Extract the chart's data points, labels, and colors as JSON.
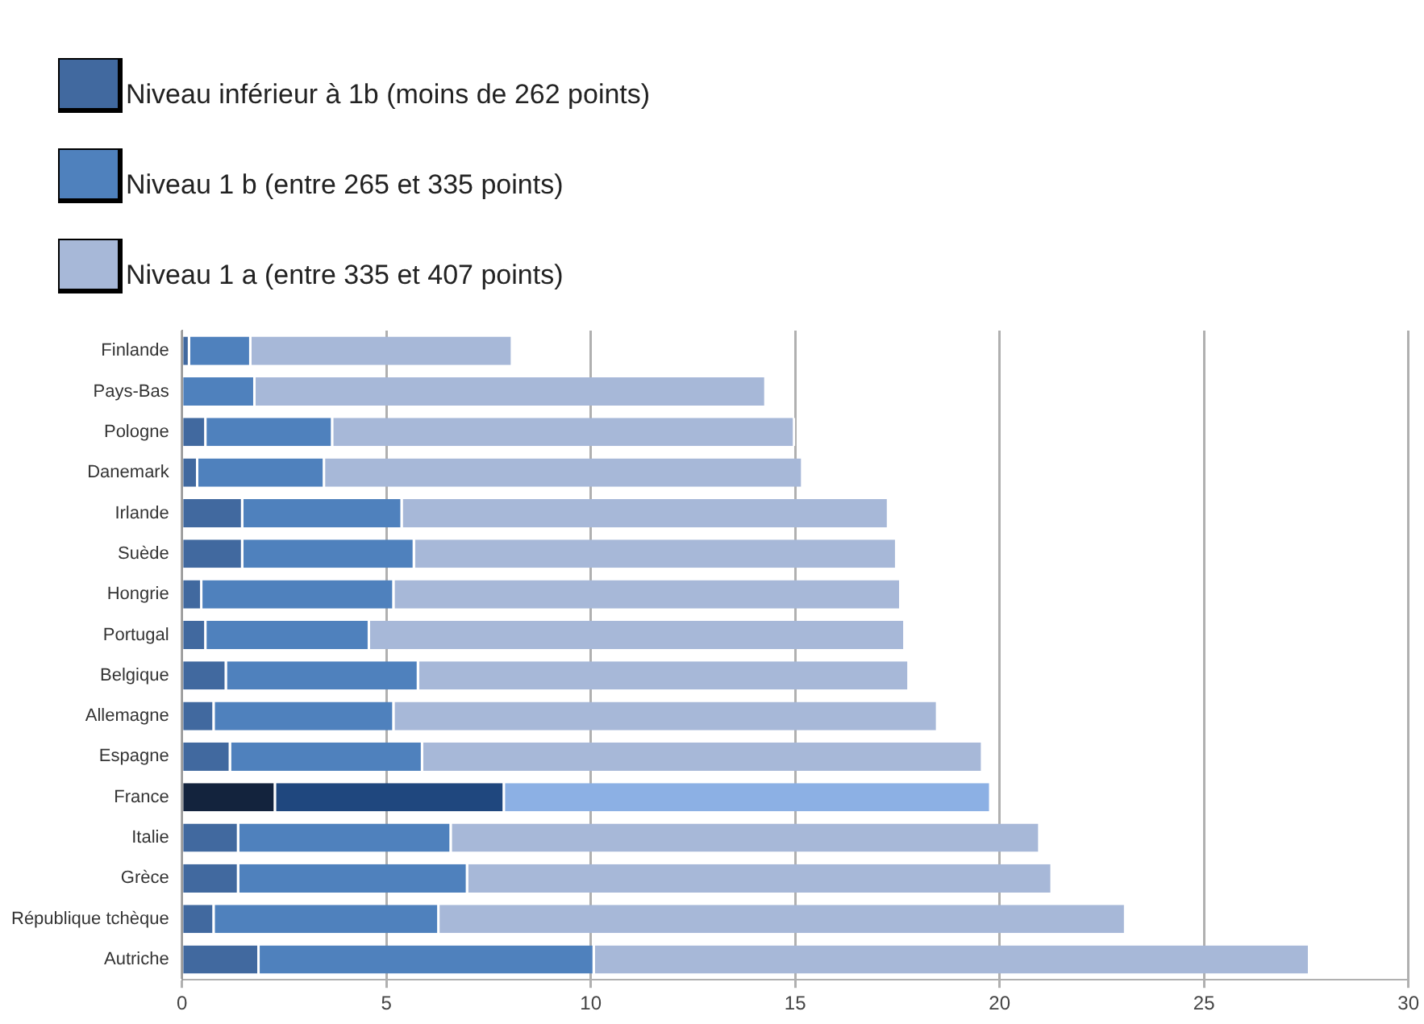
{
  "chart_data": {
    "type": "bar",
    "orientation": "horizontal",
    "stacked": true,
    "categories": [
      "Finlande",
      "Pays-Bas",
      "Pologne",
      "Danemark",
      "Irlande",
      "Suède",
      "Hongrie",
      "Portugal",
      "Belgique",
      "Allemagne",
      "Espagne",
      "France",
      "Italie",
      "Grèce",
      "République tchèque",
      "Autriche"
    ],
    "series": [
      {
        "name": "Niveau inférieur à 1b (moins de 262 points)",
        "color": "#41699f",
        "colors": [
          "#41699f",
          "#41699f",
          "#41699f",
          "#41699f",
          "#41699f",
          "#41699f",
          "#41699f",
          "#41699f",
          "#41699f",
          "#41699f",
          "#41699f",
          "#13233d",
          "#41699f",
          "#41699f",
          "#41699f",
          "#41699f"
        ],
        "values": [
          0.2,
          0,
          0.6,
          0.4,
          1.5,
          1.5,
          0.5,
          0.6,
          1.1,
          0.8,
          1.2,
          2.3,
          1.4,
          1.4,
          0.8,
          1.9
        ]
      },
      {
        "name": "Niveau 1 b (entre 265 et 335 points)",
        "color": "#4f81bd",
        "colors": [
          "#4f81bd",
          "#4f81bd",
          "#4f81bd",
          "#4f81bd",
          "#4f81bd",
          "#4f81bd",
          "#4f81bd",
          "#4f81bd",
          "#4f81bd",
          "#4f81bd",
          "#4f81bd",
          "#1f477e",
          "#4f81bd",
          "#4f81bd",
          "#4f81bd",
          "#4f81bd"
        ],
        "values": [
          1.5,
          1.8,
          3.1,
          3.1,
          3.9,
          4.2,
          4.7,
          4.0,
          4.7,
          4.4,
          4.7,
          5.6,
          5.2,
          5.6,
          5.5,
          8.2
        ]
      },
      {
        "name": "Niveau 1 a (entre 335 et 407 points)",
        "color": "#a7b8d8",
        "colors": [
          "#a7b8d8",
          "#a7b8d8",
          "#a7b8d8",
          "#a7b8d8",
          "#a7b8d8",
          "#a7b8d8",
          "#a7b8d8",
          "#a7b8d8",
          "#a7b8d8",
          "#a7b8d8",
          "#a7b8d8",
          "#8cb0e4",
          "#a7b8d8",
          "#a7b8d8",
          "#a7b8d8",
          "#a7b8d8"
        ],
        "values": [
          6.4,
          12.5,
          11.3,
          11.7,
          11.9,
          11.8,
          12.4,
          13.1,
          12.0,
          13.3,
          13.7,
          11.9,
          14.4,
          14.3,
          16.8,
          17.5
        ]
      }
    ],
    "xlim": [
      0,
      30
    ],
    "xticks": [
      0,
      5,
      10,
      15,
      20,
      25,
      30
    ],
    "grid": "x",
    "legend": "top left"
  }
}
